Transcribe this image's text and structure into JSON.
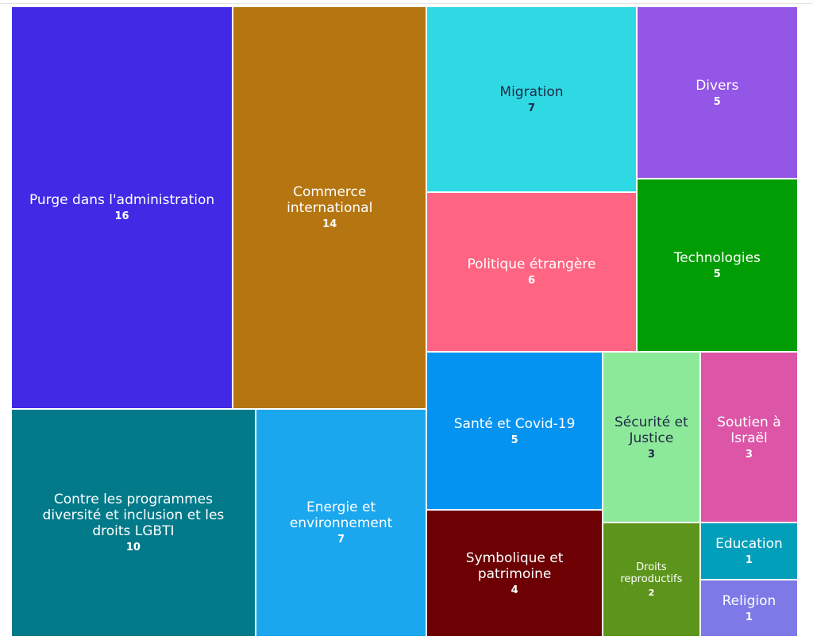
{
  "chart_data": {
    "type": "treemap",
    "categories": [
      "Purge dans l'administration",
      "Commerce international",
      "Contre les programmes diversité et inclusion et les droits LGBTI",
      "Energie et environnement",
      "Migration",
      "Politique étrangère",
      "Divers",
      "Technologies",
      "Santé et Covid-19",
      "Symbolique et patrimoine",
      "Sécurité et Justice",
      "Droits reproductifs",
      "Soutien à Israël",
      "Education",
      "Religion"
    ],
    "values": [
      16,
      14,
      10,
      7,
      7,
      6,
      5,
      5,
      5,
      4,
      3,
      2,
      3,
      1,
      1
    ],
    "colors": [
      "#4229e6",
      "#b57611",
      "#027a89",
      "#1ba7ee",
      "#2ed9e4",
      "#ff6482",
      "#9356e6",
      "#019d04",
      "#0493f0",
      "#6c0003",
      "#8de99a",
      "#5d951c",
      "#dc55a7",
      "#029fbb",
      "#7d7ae8"
    ],
    "label_colors": [
      "#ffffff",
      "#ffffff",
      "#ffffff",
      "#ffffff",
      "#1f2a44",
      "#ffffff",
      "#ffffff",
      "#ffffff",
      "#ffffff",
      "#ffffff",
      "#1f2a44",
      "#ffffff",
      "#ffffff",
      "#ffffff",
      "#ffffff"
    ]
  }
}
